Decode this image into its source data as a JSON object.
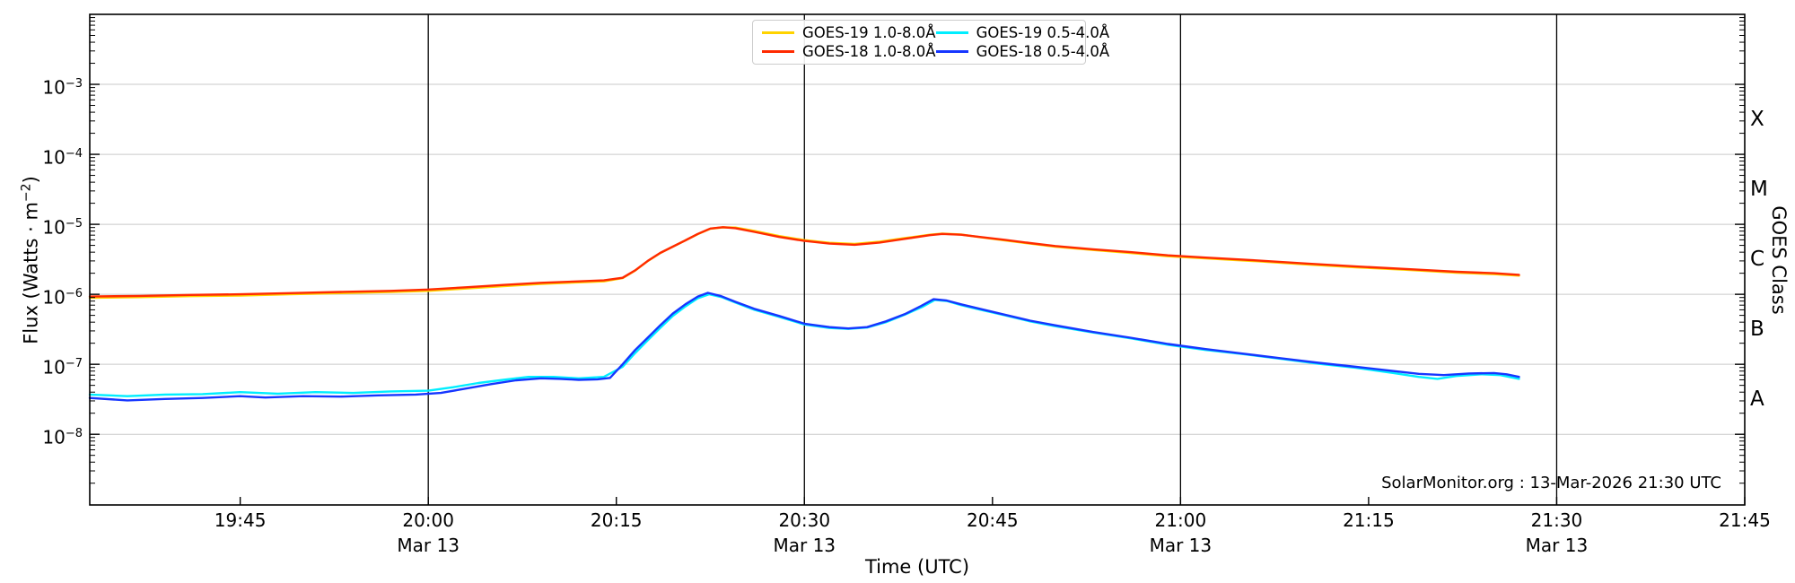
{
  "annotation": {
    "text": "SolarMonitor.org : 13-Mar-2026 21:30 UTC"
  },
  "axes": {
    "xlabel": "Time (UTC)",
    "ylabel_pre": "Flux (Watts · m",
    "ylabel_sup": "−2",
    "ylabel_post": ")",
    "right_label": "GOES Class"
  },
  "legend": {
    "items": [
      {
        "label": "GOES-19 1.0-8.0Å",
        "color": "#ffd300"
      },
      {
        "label": "GOES-18 1.0-8.0Å",
        "color": "#ff2a00"
      },
      {
        "label": "GOES-19 0.5-4.0Å",
        "color": "#00eeff"
      },
      {
        "label": "GOES-18 0.5-4.0Å",
        "color": "#1636ff"
      }
    ]
  },
  "chart_data": {
    "type": "line",
    "title": "",
    "xlabel": "Time (UTC)",
    "ylabel": "Flux (Watts · m^-2)",
    "x_axis": "time UTC on 13 March, minutes since 00:00",
    "x_range_minutes": [
      1173,
      1305
    ],
    "y_scale": "log10",
    "y_log_range": [
      -2,
      -9.01
    ],
    "grid": "light gray horizontal lines at each labeled decade",
    "legend_position": "upper center, 2 columns",
    "xticks": [
      {
        "m": 1185,
        "label": "19:45"
      },
      {
        "m": 1200,
        "label": "20:00",
        "sub": "Mar 13",
        "vline": true
      },
      {
        "m": 1215,
        "label": "20:15"
      },
      {
        "m": 1230,
        "label": "20:30",
        "sub": "Mar 13",
        "vline": true
      },
      {
        "m": 1245,
        "label": "20:45"
      },
      {
        "m": 1260,
        "label": "21:00",
        "sub": "Mar 13",
        "vline": true
      },
      {
        "m": 1275,
        "label": "21:15"
      },
      {
        "m": 1290,
        "label": "21:30",
        "sub": "Mar 13",
        "vline": true
      },
      {
        "m": 1305,
        "label": "21:45"
      }
    ],
    "yticks": [
      {
        "log": -3,
        "exp": "−3"
      },
      {
        "log": -4,
        "exp": "−4"
      },
      {
        "log": -5,
        "exp": "−5"
      },
      {
        "log": -6,
        "exp": "−6"
      },
      {
        "log": -7,
        "exp": "−7"
      },
      {
        "log": -8,
        "exp": "−8"
      }
    ],
    "right_axis": {
      "label": "GOES Class",
      "classes": [
        {
          "label": "X",
          "log": -3.5
        },
        {
          "label": "M",
          "log": -4.5
        },
        {
          "label": "C",
          "log": -5.5
        },
        {
          "label": "B",
          "log": -6.5
        },
        {
          "label": "A",
          "log": -7.5
        }
      ]
    },
    "series": [
      {
        "id": "goes19-long",
        "name": "GOES-19 1.0-8.0Å",
        "color": "#ffd300",
        "points": [
          [
            1173,
            8.9e-07
          ],
          [
            1177,
            9.1e-07
          ],
          [
            1181,
            9.4e-07
          ],
          [
            1185,
            9.6e-07
          ],
          [
            1189,
            1e-06
          ],
          [
            1193,
            1.04e-06
          ],
          [
            1197,
            1.08e-06
          ],
          [
            1200,
            1.12e-06
          ],
          [
            1203,
            1.21e-06
          ],
          [
            1206,
            1.31e-06
          ],
          [
            1209,
            1.41e-06
          ],
          [
            1212,
            1.48e-06
          ],
          [
            1214,
            1.53e-06
          ],
          [
            1215.5,
            1.7e-06
          ],
          [
            1216.5,
            2.18e-06
          ],
          [
            1217.5,
            2.98e-06
          ],
          [
            1218.5,
            3.88e-06
          ],
          [
            1219.5,
            4.78e-06
          ],
          [
            1220.5,
            5.88e-06
          ],
          [
            1221.5,
            7.25e-06
          ],
          [
            1222.5,
            8.65e-06
          ],
          [
            1223.5,
            9.05e-06
          ],
          [
            1224.5,
            9e-06
          ],
          [
            1226,
            8.05e-06
          ],
          [
            1228,
            6.8e-06
          ],
          [
            1230,
            5.95e-06
          ],
          [
            1232,
            5.45e-06
          ],
          [
            1234,
            5.25e-06
          ],
          [
            1236,
            5.65e-06
          ],
          [
            1238,
            6.35e-06
          ],
          [
            1240,
            7.1e-06
          ],
          [
            1241,
            7.35e-06
          ],
          [
            1242.5,
            7.15e-06
          ],
          [
            1244,
            6.55e-06
          ],
          [
            1246,
            5.9e-06
          ],
          [
            1248,
            5.3e-06
          ],
          [
            1250,
            4.8e-06
          ],
          [
            1253,
            4.3e-06
          ],
          [
            1256,
            3.9e-06
          ],
          [
            1259,
            3.5e-06
          ],
          [
            1262,
            3.27e-06
          ],
          [
            1266,
            2.97e-06
          ],
          [
            1270,
            2.67e-06
          ],
          [
            1274,
            2.43e-06
          ],
          [
            1278,
            2.24e-06
          ],
          [
            1282,
            2.04e-06
          ],
          [
            1285,
            1.94e-06
          ],
          [
            1287,
            1.85e-06
          ]
        ]
      },
      {
        "id": "goes18-long",
        "name": "GOES-18 1.0-8.0Å",
        "color": "#ff2a00",
        "points": [
          [
            1173,
            9.3e-07
          ],
          [
            1177,
            9.5e-07
          ],
          [
            1181,
            9.8e-07
          ],
          [
            1185,
            1e-06
          ],
          [
            1189,
            1.04e-06
          ],
          [
            1193,
            1.08e-06
          ],
          [
            1197,
            1.12e-06
          ],
          [
            1200,
            1.17e-06
          ],
          [
            1203,
            1.26e-06
          ],
          [
            1206,
            1.36e-06
          ],
          [
            1209,
            1.46e-06
          ],
          [
            1212,
            1.53e-06
          ],
          [
            1214,
            1.58e-06
          ],
          [
            1215.5,
            1.72e-06
          ],
          [
            1216.5,
            2.2e-06
          ],
          [
            1217.5,
            3e-06
          ],
          [
            1218.5,
            3.9e-06
          ],
          [
            1219.5,
            4.8e-06
          ],
          [
            1220.5,
            5.9e-06
          ],
          [
            1221.5,
            7.3e-06
          ],
          [
            1222.5,
            8.7e-06
          ],
          [
            1223.5,
            9.1e-06
          ],
          [
            1224.5,
            8.8e-06
          ],
          [
            1226,
            7.8e-06
          ],
          [
            1228,
            6.6e-06
          ],
          [
            1230,
            5.8e-06
          ],
          [
            1232,
            5.3e-06
          ],
          [
            1234,
            5.1e-06
          ],
          [
            1236,
            5.5e-06
          ],
          [
            1238,
            6.2e-06
          ],
          [
            1240,
            7e-06
          ],
          [
            1241,
            7.3e-06
          ],
          [
            1242.5,
            7.1e-06
          ],
          [
            1244,
            6.6e-06
          ],
          [
            1246,
            6e-06
          ],
          [
            1248,
            5.4e-06
          ],
          [
            1250,
            4.9e-06
          ],
          [
            1253,
            4.4e-06
          ],
          [
            1256,
            4e-06
          ],
          [
            1259,
            3.6e-06
          ],
          [
            1262,
            3.35e-06
          ],
          [
            1266,
            3.05e-06
          ],
          [
            1270,
            2.75e-06
          ],
          [
            1274,
            2.5e-06
          ],
          [
            1278,
            2.3e-06
          ],
          [
            1282,
            2.1e-06
          ],
          [
            1285,
            2e-06
          ],
          [
            1287,
            1.9e-06
          ]
        ]
      },
      {
        "id": "goes19-short",
        "name": "GOES-19 0.5-4.0Å",
        "color": "#00eeff",
        "points": [
          [
            1173,
            3.7e-08
          ],
          [
            1176,
            3.5e-08
          ],
          [
            1179,
            3.7e-08
          ],
          [
            1182,
            3.75e-08
          ],
          [
            1185,
            4e-08
          ],
          [
            1188,
            3.8e-08
          ],
          [
            1191,
            4e-08
          ],
          [
            1194,
            3.9e-08
          ],
          [
            1197,
            4.1e-08
          ],
          [
            1200,
            4.2e-08
          ],
          [
            1202,
            4.7e-08
          ],
          [
            1204,
            5.4e-08
          ],
          [
            1206,
            6e-08
          ],
          [
            1208,
            6.6e-08
          ],
          [
            1210,
            6.6e-08
          ],
          [
            1212,
            6.3e-08
          ],
          [
            1214,
            6.6e-08
          ],
          [
            1215.5,
            9.2e-08
          ],
          [
            1216.5,
            1.45e-07
          ],
          [
            1217.5,
            2.2e-07
          ],
          [
            1218.5,
            3.3e-07
          ],
          [
            1219.5,
            4.9e-07
          ],
          [
            1220.5,
            6.7e-07
          ],
          [
            1221.5,
            8.8e-07
          ],
          [
            1222.4,
            1e-06
          ],
          [
            1223.4,
            9.1e-07
          ],
          [
            1224.6,
            7.5e-07
          ],
          [
            1226,
            6e-07
          ],
          [
            1228,
            4.75e-07
          ],
          [
            1230,
            3.7e-07
          ],
          [
            1232,
            3.3e-07
          ],
          [
            1233.5,
            3.2e-07
          ],
          [
            1235,
            3.35e-07
          ],
          [
            1236.5,
            4e-07
          ],
          [
            1238,
            5.1e-07
          ],
          [
            1239.4,
            6.6e-07
          ],
          [
            1240.4,
            8.3e-07
          ],
          [
            1241.4,
            8e-07
          ],
          [
            1242.5,
            7e-07
          ],
          [
            1244,
            6.05e-07
          ],
          [
            1246,
            5e-07
          ],
          [
            1248,
            4.1e-07
          ],
          [
            1250,
            3.5e-07
          ],
          [
            1253,
            2.85e-07
          ],
          [
            1256,
            2.35e-07
          ],
          [
            1259,
            1.9e-07
          ],
          [
            1262,
            1.6e-07
          ],
          [
            1265,
            1.4e-07
          ],
          [
            1268,
            1.2e-07
          ],
          [
            1271,
            1.02e-07
          ],
          [
            1274,
            8.9e-08
          ],
          [
            1277,
            7.5e-08
          ],
          [
            1279,
            6.6e-08
          ],
          [
            1280.5,
            6.2e-08
          ],
          [
            1282,
            6.8e-08
          ],
          [
            1284,
            7.2e-08
          ],
          [
            1285.5,
            7e-08
          ],
          [
            1287,
            6.2e-08
          ]
        ]
      },
      {
        "id": "goes18-short",
        "name": "GOES-18 0.5-4.0Å",
        "color": "#1636ff",
        "points": [
          [
            1173,
            3.3e-08
          ],
          [
            1176,
            3.05e-08
          ],
          [
            1179,
            3.2e-08
          ],
          [
            1182,
            3.3e-08
          ],
          [
            1185,
            3.5e-08
          ],
          [
            1187,
            3.35e-08
          ],
          [
            1190,
            3.5e-08
          ],
          [
            1193,
            3.45e-08
          ],
          [
            1196,
            3.6e-08
          ],
          [
            1199,
            3.7e-08
          ],
          [
            1201,
            3.9e-08
          ],
          [
            1203,
            4.5e-08
          ],
          [
            1205,
            5.2e-08
          ],
          [
            1207,
            5.9e-08
          ],
          [
            1209,
            6.3e-08
          ],
          [
            1210.5,
            6.2e-08
          ],
          [
            1212,
            6e-08
          ],
          [
            1213.5,
            6.1e-08
          ],
          [
            1214.5,
            6.4e-08
          ],
          [
            1215.5,
            1e-07
          ],
          [
            1216.5,
            1.6e-07
          ],
          [
            1217.5,
            2.4e-07
          ],
          [
            1218.5,
            3.6e-07
          ],
          [
            1219.5,
            5.3e-07
          ],
          [
            1220.5,
            7.2e-07
          ],
          [
            1221.5,
            9.3e-07
          ],
          [
            1222.3,
            1.05e-06
          ],
          [
            1223.3,
            9.5e-07
          ],
          [
            1224.5,
            7.8e-07
          ],
          [
            1226,
            6.2e-07
          ],
          [
            1228,
            4.9e-07
          ],
          [
            1230,
            3.8e-07
          ],
          [
            1232,
            3.4e-07
          ],
          [
            1233.5,
            3.25e-07
          ],
          [
            1235,
            3.4e-07
          ],
          [
            1236.5,
            4.1e-07
          ],
          [
            1238,
            5.2e-07
          ],
          [
            1239.3,
            6.8e-07
          ],
          [
            1240.3,
            8.5e-07
          ],
          [
            1241.3,
            8.2e-07
          ],
          [
            1242.5,
            7.2e-07
          ],
          [
            1244,
            6.2e-07
          ],
          [
            1246,
            5.1e-07
          ],
          [
            1248,
            4.2e-07
          ],
          [
            1250,
            3.6e-07
          ],
          [
            1253,
            2.9e-07
          ],
          [
            1256,
            2.4e-07
          ],
          [
            1259,
            1.95e-07
          ],
          [
            1262,
            1.65e-07
          ],
          [
            1265,
            1.42e-07
          ],
          [
            1268,
            1.22e-07
          ],
          [
            1271,
            1.05e-07
          ],
          [
            1274,
            9.2e-08
          ],
          [
            1277,
            8e-08
          ],
          [
            1279,
            7.3e-08
          ],
          [
            1281,
            7e-08
          ],
          [
            1283,
            7.4e-08
          ],
          [
            1285,
            7.5e-08
          ],
          [
            1286,
            7.2e-08
          ],
          [
            1287,
            6.6e-08
          ]
        ]
      }
    ]
  }
}
